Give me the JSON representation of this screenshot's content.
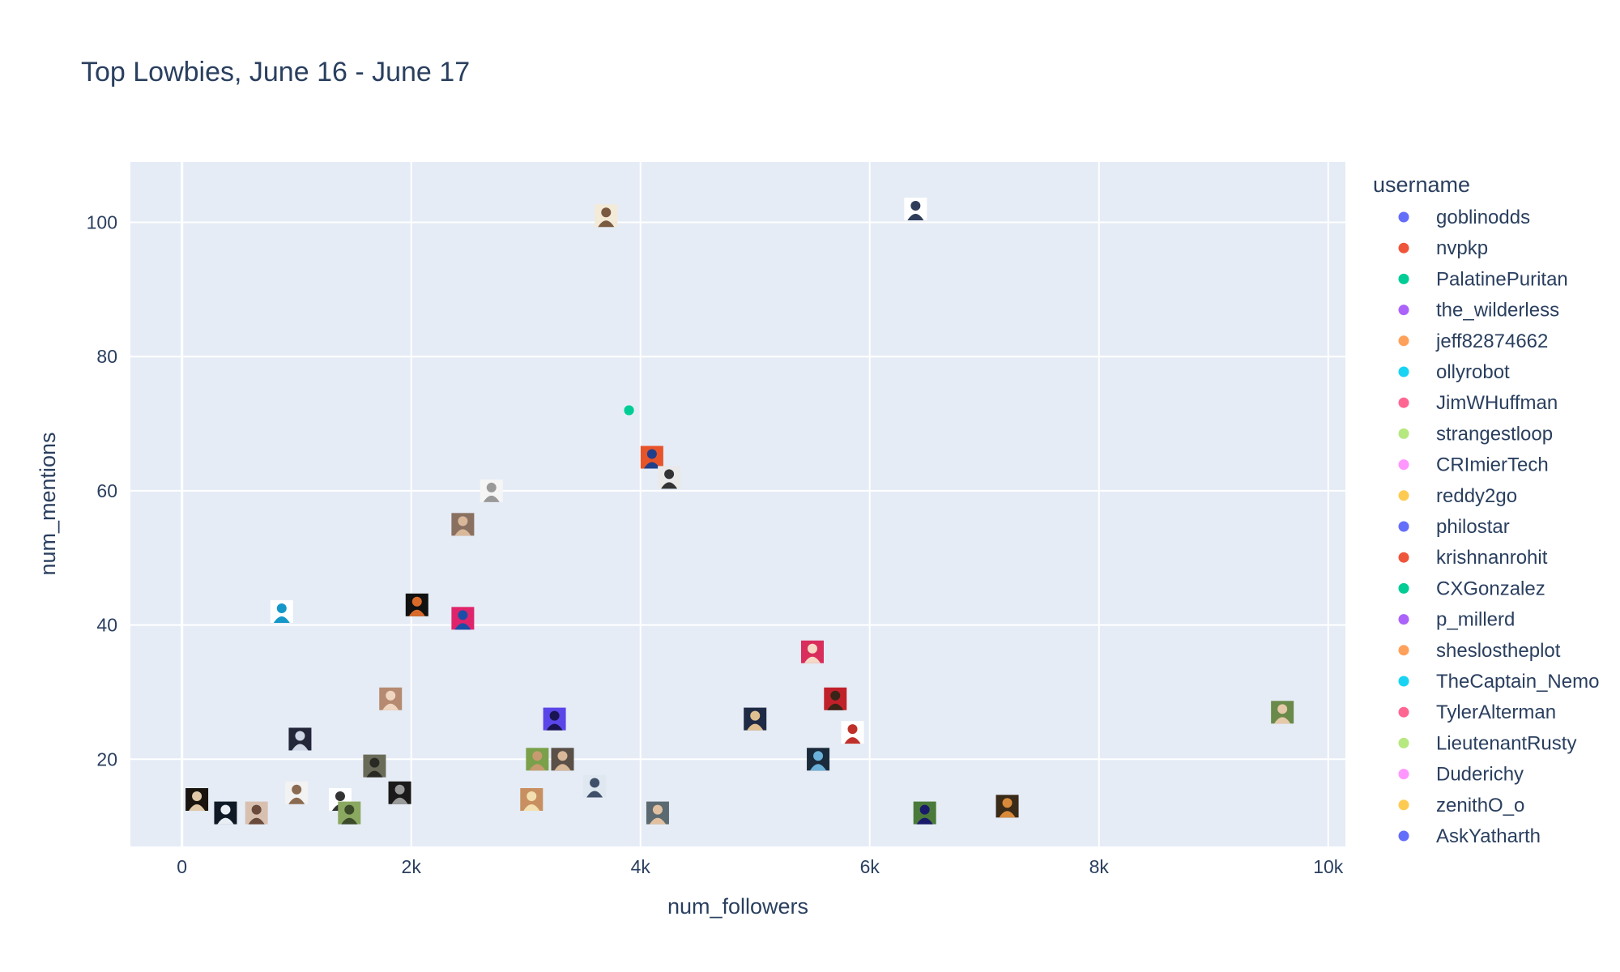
{
  "chart_data": {
    "type": "scatter",
    "title": "Top Lowbies, June 16 - June 17",
    "xlabel": "num_followers",
    "ylabel": "num_mentions",
    "xlim": [
      -450,
      10150
    ],
    "ylim": [
      7,
      109
    ],
    "x_ticks": [
      {
        "value": 0,
        "label": "0"
      },
      {
        "value": 2000,
        "label": "2k"
      },
      {
        "value": 4000,
        "label": "4k"
      },
      {
        "value": 6000,
        "label": "6k"
      },
      {
        "value": 8000,
        "label": "8k"
      },
      {
        "value": 10000,
        "label": "10k"
      }
    ],
    "y_ticks": [
      {
        "value": 20,
        "label": "20"
      },
      {
        "value": 40,
        "label": "40"
      },
      {
        "value": 60,
        "label": "60"
      },
      {
        "value": 80,
        "label": "80"
      },
      {
        "value": 100,
        "label": "100"
      }
    ],
    "grid": true,
    "legend": {
      "title": "username",
      "placement": "right",
      "entries": [
        {
          "name": "goblinodds",
          "color": "#636efa"
        },
        {
          "name": "nvpkp",
          "color": "#EF553B"
        },
        {
          "name": "PalatinePuritan",
          "color": "#00cc96"
        },
        {
          "name": "the_wilderless",
          "color": "#ab63fa"
        },
        {
          "name": "jeff82874662",
          "color": "#FFA15A"
        },
        {
          "name": "ollyrobot",
          "color": "#19d3f3"
        },
        {
          "name": "JimWHuffman",
          "color": "#FF6692"
        },
        {
          "name": "strangestloop",
          "color": "#B6E880"
        },
        {
          "name": "CRImierTech",
          "color": "#FF97FF"
        },
        {
          "name": "reddy2go",
          "color": "#FECB52"
        },
        {
          "name": "philostar",
          "color": "#636efa"
        },
        {
          "name": "krishnanrohit",
          "color": "#EF553B"
        },
        {
          "name": "CXGonzalez",
          "color": "#00cc96"
        },
        {
          "name": "p_millerd",
          "color": "#ab63fa"
        },
        {
          "name": "sheslostheplot",
          "color": "#FFA15A"
        },
        {
          "name": "TheCaptain_Nemo",
          "color": "#19d3f3"
        },
        {
          "name": "TylerAlterman",
          "color": "#FF6692"
        },
        {
          "name": "LieutenantRusty",
          "color": "#B6E880"
        },
        {
          "name": "Duderichy",
          "color": "#FF97FF"
        },
        {
          "name": "zenithO_o",
          "color": "#FECB52"
        },
        {
          "name": "AskYatharth",
          "color": "#636efa"
        }
      ]
    },
    "points": [
      {
        "x": 3700,
        "y": 101,
        "kind": "avatar",
        "bg": "#f3ead8",
        "fg": "#7a5a40"
      },
      {
        "x": 6400,
        "y": 102,
        "kind": "avatar",
        "bg": "#ffffff",
        "fg": "#2f3d5a"
      },
      {
        "x": 3900,
        "y": 72,
        "kind": "dot",
        "color": "#00cc96"
      },
      {
        "x": 4100,
        "y": 65,
        "kind": "avatar",
        "bg": "#e8542a",
        "fg": "#1f3f8a"
      },
      {
        "x": 4250,
        "y": 62,
        "kind": "avatar",
        "bg": "#e9e9e9",
        "fg": "#333333"
      },
      {
        "x": 2700,
        "y": 60,
        "kind": "avatar",
        "bg": "#f5f5f5",
        "fg": "#999999"
      },
      {
        "x": 2450,
        "y": 55,
        "kind": "avatar",
        "bg": "#8a7060",
        "fg": "#d9b89a"
      },
      {
        "x": 870,
        "y": 42,
        "kind": "avatar",
        "bg": "#ffffff",
        "fg": "#1597c9"
      },
      {
        "x": 2050,
        "y": 43,
        "kind": "avatar",
        "bg": "#111111",
        "fg": "#d96a2a"
      },
      {
        "x": 2450,
        "y": 41,
        "kind": "avatar",
        "bg": "#e0246c",
        "fg": "#1a4fa8"
      },
      {
        "x": 5500,
        "y": 36,
        "kind": "avatar",
        "bg": "#d92d5c",
        "fg": "#f3d9c6"
      },
      {
        "x": 5700,
        "y": 29,
        "kind": "avatar",
        "bg": "#c0202a",
        "fg": "#3a2418"
      },
      {
        "x": 5850,
        "y": 24,
        "kind": "avatar",
        "bg": "#ffffff",
        "fg": "#c0302a"
      },
      {
        "x": 9600,
        "y": 27,
        "kind": "avatar",
        "bg": "#6a8a4a",
        "fg": "#e6c9a8"
      },
      {
        "x": 1820,
        "y": 29,
        "kind": "avatar",
        "bg": "#b58a70",
        "fg": "#f0d5c0"
      },
      {
        "x": 3250,
        "y": 26,
        "kind": "avatar",
        "bg": "#5a45e8",
        "fg": "#1a1550"
      },
      {
        "x": 5000,
        "y": 26,
        "kind": "avatar",
        "bg": "#1f2a44",
        "fg": "#e0c090"
      },
      {
        "x": 1030,
        "y": 23,
        "kind": "avatar",
        "bg": "#222638",
        "fg": "#cfd6e6"
      },
      {
        "x": 1680,
        "y": 19,
        "kind": "avatar",
        "bg": "#6a6a58",
        "fg": "#2a2a24"
      },
      {
        "x": 3100,
        "y": 20,
        "kind": "avatar",
        "bg": "#7aa04a",
        "fg": "#c89a70"
      },
      {
        "x": 3320,
        "y": 20,
        "kind": "avatar",
        "bg": "#5a5048",
        "fg": "#d8b898"
      },
      {
        "x": 5550,
        "y": 20,
        "kind": "avatar",
        "bg": "#1a2a3a",
        "fg": "#6ab0d8"
      },
      {
        "x": 3600,
        "y": 16,
        "kind": "avatar",
        "bg": "#dfe8f0",
        "fg": "#40506a"
      },
      {
        "x": 1000,
        "y": 15,
        "kind": "avatar",
        "bg": "#f2f2f2",
        "fg": "#8a6a50"
      },
      {
        "x": 1900,
        "y": 15,
        "kind": "avatar",
        "bg": "#1a1a1a",
        "fg": "#9a9a9a"
      },
      {
        "x": 130,
        "y": 14,
        "kind": "avatar",
        "bg": "#1a1410",
        "fg": "#e0c8a8"
      },
      {
        "x": 1380,
        "y": 14,
        "kind": "avatar",
        "bg": "#ffffff",
        "fg": "#333333"
      },
      {
        "x": 3050,
        "y": 14,
        "kind": "avatar",
        "bg": "#c89060",
        "fg": "#f3e0b0"
      },
      {
        "x": 380,
        "y": 12,
        "kind": "avatar",
        "bg": "#0f1a26",
        "fg": "#e8eef4"
      },
      {
        "x": 650,
        "y": 12,
        "kind": "avatar",
        "bg": "#d8c0b0",
        "fg": "#6a4a3a"
      },
      {
        "x": 1460,
        "y": 12,
        "kind": "avatar",
        "bg": "#8aa860",
        "fg": "#3a4a2a"
      },
      {
        "x": 4150,
        "y": 12,
        "kind": "avatar",
        "bg": "#5a6a70",
        "fg": "#e0c0a0"
      },
      {
        "x": 6480,
        "y": 12,
        "kind": "avatar",
        "bg": "#4a7a3a",
        "fg": "#1a1a6a"
      },
      {
        "x": 7200,
        "y": 13,
        "kind": "avatar",
        "bg": "#3a2a18",
        "fg": "#d88a3a"
      }
    ]
  }
}
